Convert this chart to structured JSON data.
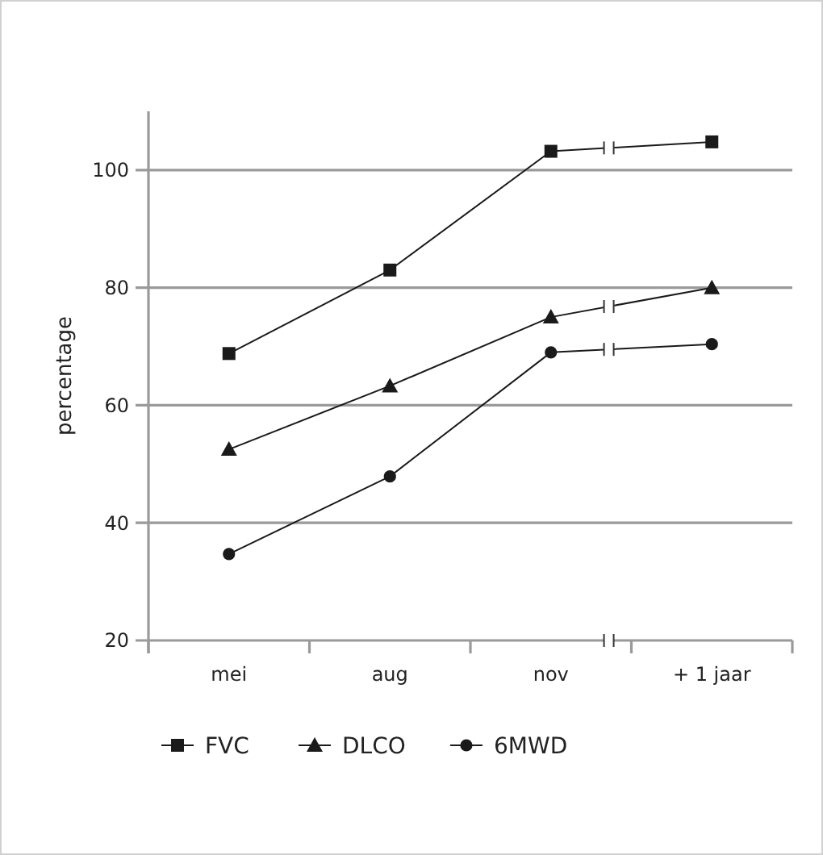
{
  "chart_data": {
    "type": "line",
    "ylabel": "percentage",
    "categories": [
      "mei",
      "aug",
      "nov",
      "+ 1 jaar"
    ],
    "series": [
      {
        "name": "FVC",
        "color": "#1a1a1a",
        "marker": "square",
        "values": [
          68.8,
          83,
          103.2,
          104.8
        ]
      },
      {
        "name": "DLCO",
        "color": "#1a1a1a",
        "marker": "triangle",
        "values": [
          52.5,
          63.3,
          75,
          80
        ]
      },
      {
        "name": "6MWD",
        "color": "#1a1a1a",
        "marker": "circle",
        "values": [
          34.7,
          47.9,
          69,
          70.4
        ]
      }
    ],
    "ylim": [
      20,
      110
    ],
    "yticks": [
      20,
      40,
      60,
      80,
      100
    ],
    "grid": "y",
    "legend": "bottom left",
    "line_style": "solid"
  }
}
